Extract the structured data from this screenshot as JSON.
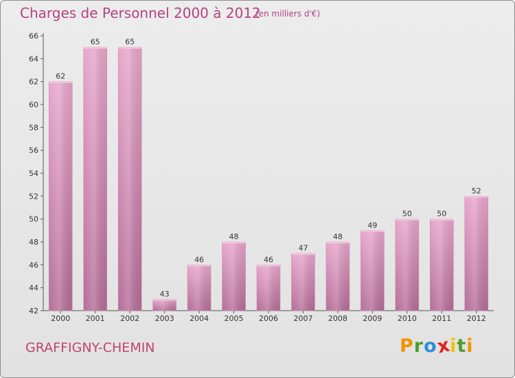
{
  "header": {
    "title": "Charges de Personnel 2000 à 2012",
    "subtitle": "(en milliers d'€)"
  },
  "footer": {
    "commune": "GRAFFIGNY-CHEMIN",
    "logo_text": "Proxiti",
    "logo_letters": [
      {
        "char": "P",
        "color": "#f29400"
      },
      {
        "char": "r",
        "color": "#4aa02c"
      },
      {
        "char": "o",
        "color": "#2c8fd6"
      },
      {
        "char": "x",
        "color": "#e2231a"
      },
      {
        "char": "i",
        "color": "#f2c200"
      },
      {
        "char": "t",
        "color": "#4aa02c"
      },
      {
        "char": "i",
        "color": "#f29400"
      }
    ]
  },
  "colors": {
    "bar_top": "#e8a6cc",
    "bar_bottom": "#b56e98",
    "accent": "#b3437f",
    "axis": "#555555",
    "grid": "#cfcfcf"
  },
  "chart_data": {
    "type": "bar",
    "title": "Charges de Personnel 2000 à 2012",
    "subtitle": "(en milliers d'€)",
    "categories": [
      "2000",
      "2001",
      "2002",
      "2003",
      "2004",
      "2005",
      "2006",
      "2007",
      "2008",
      "2009",
      "2010",
      "2011",
      "2012"
    ],
    "values": [
      62,
      65,
      65,
      43,
      46,
      48,
      46,
      47,
      48,
      49,
      50,
      50,
      52
    ],
    "ylim": [
      42,
      66
    ],
    "yticks": [
      42,
      44,
      46,
      48,
      50,
      52,
      54,
      56,
      58,
      60,
      62,
      64,
      66
    ],
    "xlabel": "",
    "ylabel": "",
    "grid": false,
    "data_labels": true
  }
}
